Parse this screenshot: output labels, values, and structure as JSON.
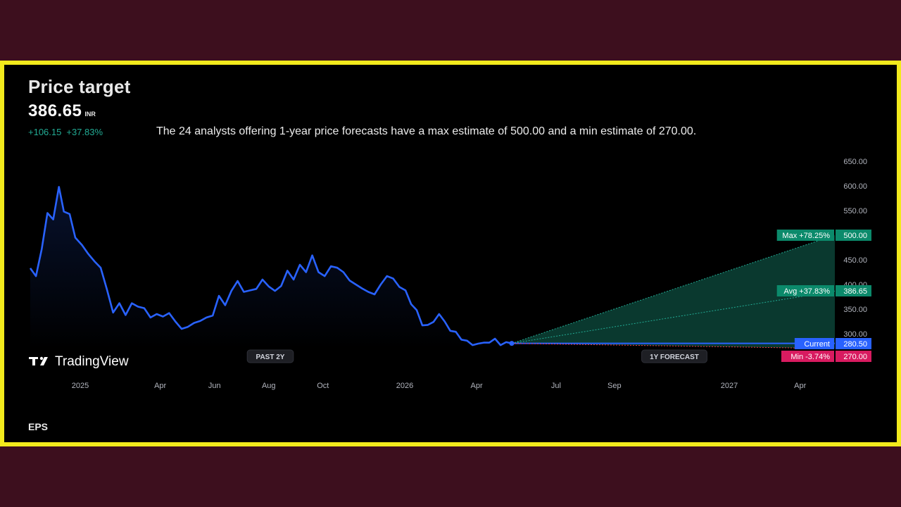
{
  "header": {
    "title": "Price target",
    "price": "386.65",
    "currency": "INR",
    "change_abs": "+106.15",
    "change_pct": "+37.83%",
    "summary": "The 24 analysts offering 1-year price forecasts have a max estimate of 500.00 and a min estimate of 270.00."
  },
  "footer": {
    "section_label": "EPS"
  },
  "branding": {
    "logo_text": "TradingView"
  },
  "colors": {
    "page_background": "#3d0f1e",
    "frame_border": "#f2ea1c",
    "chart_background": "#000000",
    "history_line": "#2962ff",
    "forecast_fill": "#0e4c3f",
    "positive": "#22ab94",
    "negative": "#f23645",
    "current": "#2962ff",
    "axis_text": "#b2b5be"
  },
  "chart_data": {
    "type": "line",
    "ylim": [
      265,
      650
    ],
    "y_ticks": [
      "650.00",
      "600.00",
      "550.00",
      "500.00",
      "450.00",
      "400.00",
      "350.00",
      "300.00"
    ],
    "x_ticks": [
      "2025",
      "Apr",
      "Jun",
      "Aug",
      "Oct",
      "2026",
      "Apr",
      "Jul",
      "Sep",
      "2027",
      "Apr"
    ],
    "x_tick_dates": [
      "2025-01-01",
      "2025-04-01",
      "2025-06-01",
      "2025-08-01",
      "2025-10-01",
      "2026-01-01",
      "2026-04-01",
      "2026-07-01",
      "2026-09-01",
      "2027-01-01",
      "2027-04-01"
    ],
    "period_labels": {
      "past": "PAST 2Y",
      "forecast": "1Y FORECAST"
    },
    "series": [
      {
        "values_type": "history",
        "points": [
          [
            "2024-11-01",
            433
          ],
          [
            "2024-11-08",
            417
          ],
          [
            "2024-11-15",
            472
          ],
          [
            "2024-11-22",
            545
          ],
          [
            "2024-11-29",
            532
          ],
          [
            "2024-12-06",
            598
          ],
          [
            "2024-12-12",
            548
          ],
          [
            "2024-12-19",
            543
          ],
          [
            "2024-12-26",
            495
          ],
          [
            "2025-01-03",
            480
          ],
          [
            "2025-01-10",
            462
          ],
          [
            "2025-01-17",
            447
          ],
          [
            "2025-01-24",
            434
          ],
          [
            "2025-01-31",
            390
          ],
          [
            "2025-02-07",
            343
          ],
          [
            "2025-02-14",
            362
          ],
          [
            "2025-02-21",
            338
          ],
          [
            "2025-02-28",
            362
          ],
          [
            "2025-03-07",
            355
          ],
          [
            "2025-03-14",
            352
          ],
          [
            "2025-03-21",
            333
          ],
          [
            "2025-03-28",
            340
          ],
          [
            "2025-04-04",
            335
          ],
          [
            "2025-04-11",
            342
          ],
          [
            "2025-04-18",
            325
          ],
          [
            "2025-04-25",
            310
          ],
          [
            "2025-05-02",
            314
          ],
          [
            "2025-05-09",
            322
          ],
          [
            "2025-05-16",
            326
          ],
          [
            "2025-05-23",
            333
          ],
          [
            "2025-05-30",
            337
          ],
          [
            "2025-06-06",
            377
          ],
          [
            "2025-06-13",
            358
          ],
          [
            "2025-06-20",
            387
          ],
          [
            "2025-06-27",
            407
          ],
          [
            "2025-07-04",
            385
          ],
          [
            "2025-07-11",
            388
          ],
          [
            "2025-07-18",
            391
          ],
          [
            "2025-07-25",
            410
          ],
          [
            "2025-08-01",
            396
          ],
          [
            "2025-08-08",
            387
          ],
          [
            "2025-08-15",
            397
          ],
          [
            "2025-08-22",
            428
          ],
          [
            "2025-08-29",
            410
          ],
          [
            "2025-09-05",
            440
          ],
          [
            "2025-09-12",
            425
          ],
          [
            "2025-09-19",
            459
          ],
          [
            "2025-09-26",
            425
          ],
          [
            "2025-10-03",
            417
          ],
          [
            "2025-10-10",
            437
          ],
          [
            "2025-10-17",
            434
          ],
          [
            "2025-10-24",
            425
          ],
          [
            "2025-10-31",
            408
          ],
          [
            "2025-11-07",
            400
          ],
          [
            "2025-11-14",
            392
          ],
          [
            "2025-11-21",
            385
          ],
          [
            "2025-11-28",
            380
          ],
          [
            "2025-12-05",
            400
          ],
          [
            "2025-12-12",
            417
          ],
          [
            "2025-12-19",
            412
          ],
          [
            "2025-12-26",
            395
          ],
          [
            "2026-01-02",
            388
          ],
          [
            "2026-01-09",
            360
          ],
          [
            "2026-01-16",
            348
          ],
          [
            "2026-01-23",
            317
          ],
          [
            "2026-01-30",
            318
          ],
          [
            "2026-02-06",
            324
          ],
          [
            "2026-02-13",
            340
          ],
          [
            "2026-02-20",
            325
          ],
          [
            "2026-02-27",
            306
          ],
          [
            "2026-03-06",
            304
          ],
          [
            "2026-03-13",
            288
          ],
          [
            "2026-03-20",
            286
          ],
          [
            "2026-03-27",
            277
          ],
          [
            "2026-04-03",
            280
          ],
          [
            "2026-04-10",
            282
          ],
          [
            "2026-04-17",
            282
          ],
          [
            "2026-04-24",
            290
          ],
          [
            "2026-05-01",
            277
          ],
          [
            "2026-05-08",
            283
          ],
          [
            "2026-05-15",
            280.5
          ]
        ]
      },
      {
        "name": "Max",
        "start": [
          "2026-05-15",
          280.5
        ],
        "end": [
          "2027-05-15",
          500.0
        ],
        "label": "Max +78.25%",
        "value_label": "500.00"
      },
      {
        "name": "Avg",
        "start": [
          "2026-05-15",
          280.5
        ],
        "end": [
          "2027-05-15",
          386.65
        ],
        "label": "Avg +37.83%",
        "value_label": "386.65"
      },
      {
        "name": "Current",
        "start": [
          "2026-05-15",
          280.5
        ],
        "end": [
          "2027-05-15",
          280.5
        ],
        "label": "Current",
        "value_label": "280.50"
      },
      {
        "name": "Min",
        "start": [
          "2026-05-15",
          280.5
        ],
        "end": [
          "2027-05-15",
          270.0
        ],
        "label": "Min -3.74%",
        "value_label": "270.00"
      }
    ]
  }
}
